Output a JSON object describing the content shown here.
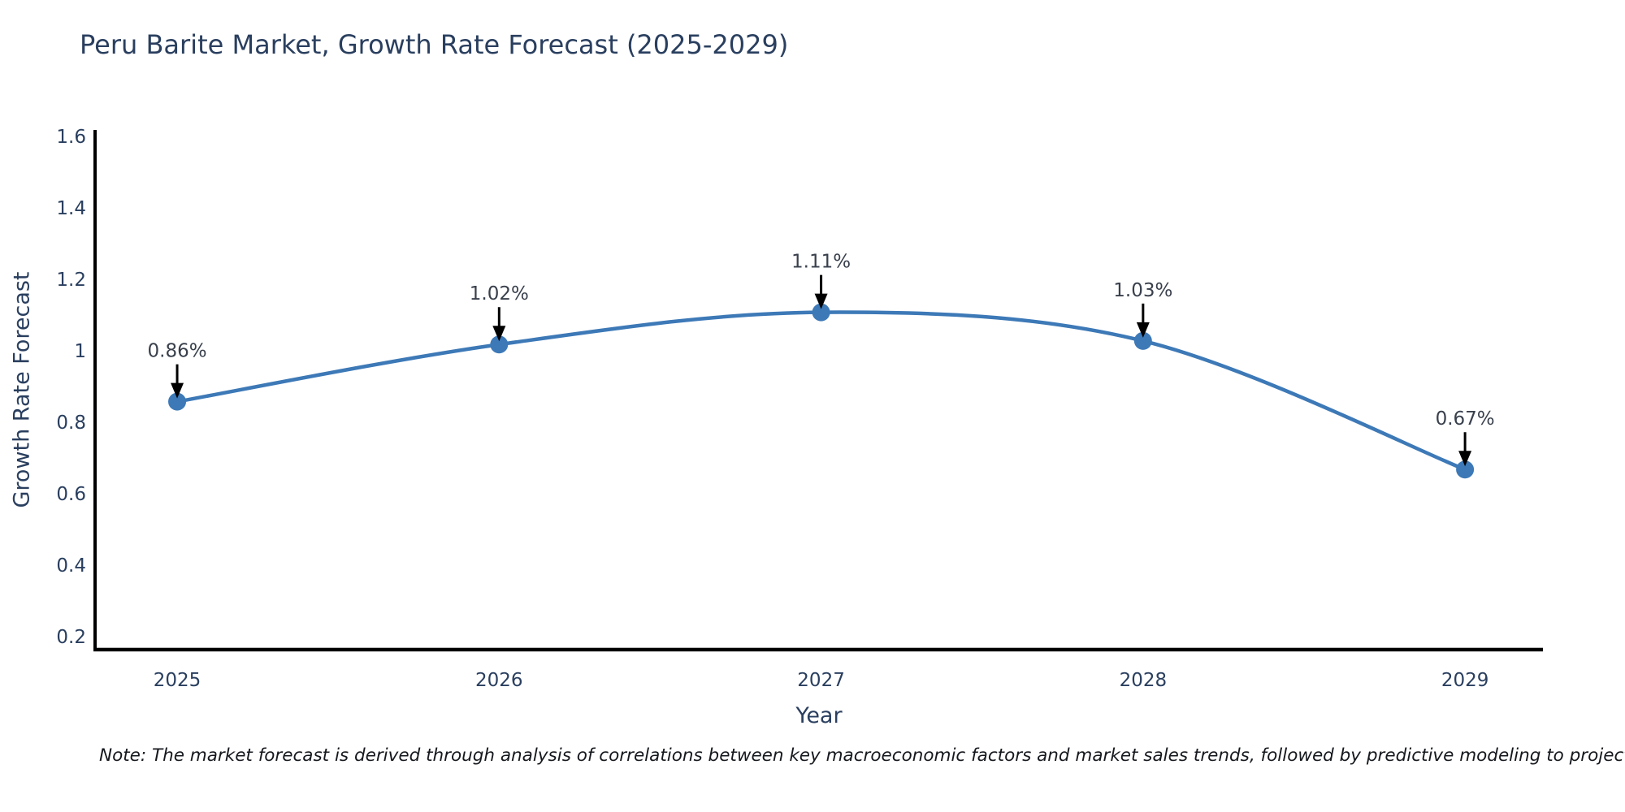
{
  "chart": {
    "title": "Peru Barite Market, Growth Rate Forecast (2025-2029)",
    "xlabel": "Year",
    "ylabel": "Growth Rate Forecast",
    "note": "Note: The market forecast is derived through analysis of correlations between key macroeconomic factors and market sales trends, followed by predictive modeling to project future sales"
  },
  "chart_data": {
    "type": "line",
    "title": "Peru Barite Market, Growth Rate Forecast (2025-2029)",
    "xlabel": "Year",
    "ylabel": "Growth Rate Forecast",
    "x": [
      2025,
      2026,
      2027,
      2028,
      2029
    ],
    "x_tick_labels": [
      "2025",
      "2026",
      "2027",
      "2028",
      "2029"
    ],
    "series": [
      {
        "name": "Growth Rate Forecast",
        "values": [
          0.86,
          1.02,
          1.11,
          1.03,
          0.67
        ]
      }
    ],
    "point_labels": [
      "0.86%",
      "1.02%",
      "1.11%",
      "1.03%",
      "0.67%"
    ],
    "yticks": [
      0.2,
      0.4,
      0.6,
      0.8,
      1,
      1.2,
      1.4,
      1.6
    ],
    "ytick_labels": [
      "0.2",
      "0.4",
      "0.6",
      "0.8",
      "1",
      "1.2",
      "1.4",
      "1.6"
    ],
    "xlim": [
      2024.745,
      2029.242
    ],
    "ylim": [
      0.166,
      1.6205
    ],
    "line_shape": "spline",
    "grid": false,
    "legend_position": "none",
    "annotations_have_arrows": true,
    "colors": {
      "line": "#3d79b7",
      "marker": "#3d79b7",
      "arrow": "#000000",
      "axis_line": "#000000",
      "text": "#2a3f5f",
      "annotation_text": "#39404c",
      "note_text": "#15181d"
    }
  }
}
